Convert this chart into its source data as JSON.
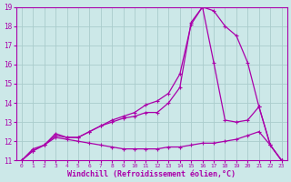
{
  "title": "",
  "xlabel": "Windchill (Refroidissement éolien,°C)",
  "ylabel": "",
  "background_color": "#cce8e8",
  "grid_color": "#aacccc",
  "line_color": "#aa00aa",
  "xlim": [
    -0.5,
    23.5
  ],
  "ylim": [
    11,
    19
  ],
  "xticks": [
    0,
    1,
    2,
    3,
    4,
    5,
    6,
    7,
    8,
    9,
    10,
    11,
    12,
    13,
    14,
    15,
    16,
    17,
    18,
    19,
    20,
    21,
    22,
    23
  ],
  "yticks": [
    11,
    12,
    13,
    14,
    15,
    16,
    17,
    18,
    19
  ],
  "line1_x": [
    0,
    1,
    2,
    3,
    4,
    5,
    6,
    7,
    8,
    9,
    10,
    11,
    12,
    13,
    14,
    15,
    16,
    17,
    18,
    19,
    20,
    21,
    22,
    23
  ],
  "line1_y": [
    11.0,
    11.6,
    11.8,
    12.4,
    12.2,
    12.2,
    12.5,
    12.8,
    13.1,
    13.3,
    13.5,
    13.9,
    14.1,
    14.5,
    15.5,
    18.1,
    19.0,
    18.8,
    18.0,
    17.5,
    16.1,
    13.8,
    11.8,
    11.0
  ],
  "line2_x": [
    0,
    1,
    2,
    3,
    4,
    5,
    6,
    7,
    8,
    9,
    10,
    11,
    12,
    13,
    14,
    15,
    16,
    17,
    18,
    19,
    20,
    21,
    22,
    23
  ],
  "line2_y": [
    11.0,
    11.5,
    11.8,
    12.3,
    12.2,
    12.2,
    12.5,
    12.8,
    13.0,
    13.2,
    13.3,
    13.5,
    13.5,
    14.0,
    14.8,
    18.2,
    19.0,
    16.1,
    13.1,
    13.0,
    13.1,
    13.8,
    11.8,
    11.0
  ],
  "line3_x": [
    0,
    1,
    2,
    3,
    4,
    5,
    6,
    7,
    8,
    9,
    10,
    11,
    12,
    13,
    14,
    15,
    16,
    17,
    18,
    19,
    20,
    21,
    22,
    23
  ],
  "line3_y": [
    11.0,
    11.5,
    11.8,
    12.2,
    12.1,
    12.0,
    11.9,
    11.8,
    11.7,
    11.6,
    11.6,
    11.6,
    11.6,
    11.7,
    11.7,
    11.8,
    11.9,
    11.9,
    12.0,
    12.1,
    12.3,
    12.5,
    11.8,
    11.0
  ]
}
